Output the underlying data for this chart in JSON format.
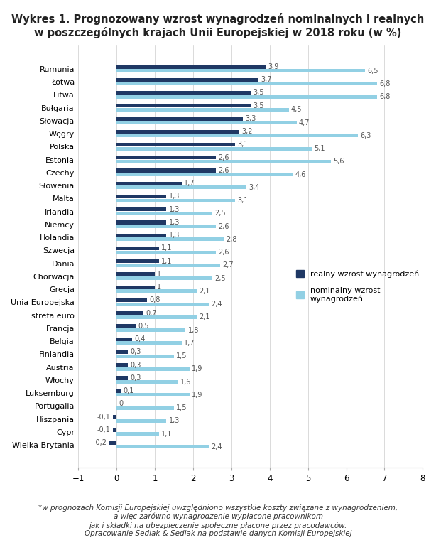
{
  "title": "Wykres 1. Prognozowany wzrost wynagrodzeń nominalnych i realnych\nw poszczególnych krajach Unii Europejskiej w 2018 roku (w %)",
  "countries": [
    "Rumunia",
    "Łotwa",
    "Litwa",
    "Bułgaria",
    "Słowacja",
    "Węgry",
    "Polska",
    "Estonia",
    "Czechy",
    "Słowenia",
    "Malta",
    "Irlandia",
    "Niemcy",
    "Holandia",
    "Szwecja",
    "Dania",
    "Chorwacja",
    "Grecja",
    "Unia Europejska",
    "strefa euro",
    "Francja",
    "Belgia",
    "Finlandia",
    "Austria",
    "Włochy",
    "Luksemburg",
    "Portugalia",
    "Hiszpania",
    "Cypr",
    "Wielka Brytania"
  ],
  "real": [
    3.9,
    3.7,
    3.5,
    3.5,
    3.3,
    3.2,
    3.1,
    2.6,
    2.6,
    1.7,
    1.3,
    1.3,
    1.3,
    1.3,
    1.1,
    1.1,
    1.0,
    1.0,
    0.8,
    0.7,
    0.5,
    0.4,
    0.3,
    0.3,
    0.3,
    0.1,
    0.0,
    -0.1,
    -0.1,
    -0.2
  ],
  "nominal": [
    6.5,
    6.8,
    6.8,
    4.5,
    4.7,
    6.3,
    5.1,
    5.6,
    4.6,
    3.4,
    3.1,
    2.5,
    2.6,
    2.8,
    2.6,
    2.7,
    2.5,
    2.1,
    2.4,
    2.1,
    1.8,
    1.7,
    1.5,
    1.9,
    1.6,
    1.9,
    1.5,
    1.3,
    1.1,
    2.4
  ],
  "real_color": "#1f3864",
  "nominal_color": "#92d0e4",
  "xlim": [
    -1,
    8
  ],
  "xticks": [
    -1,
    0,
    1,
    2,
    3,
    4,
    5,
    6,
    7,
    8
  ],
  "legend_real": "realny wzrost wynagrodzeń",
  "legend_nominal": "nominalny wzrost\nwynagrodzeń",
  "footnote": "*w prognozach Komisji Europejskiej uwzględniono wszystkie koszty związane z wynagrodzeniem,\na więc zarówno wynagrodzenie wypłacone pracownikom\njak i składki na ubezpieczenie społeczne płacone przez pracodawców.\nOpracowanie Sedlak & Sedlak na podstawie danych Komisji Europejskiej",
  "background_color": "#ffffff",
  "title_fontsize": 10.5,
  "label_fontsize": 8,
  "tick_fontsize": 8.5,
  "footnote_fontsize": 7.5
}
